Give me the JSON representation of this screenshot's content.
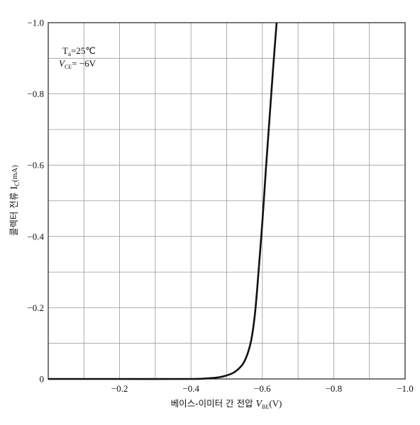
{
  "chart_data": {
    "type": "line",
    "xlabel": "베이스-이미터 간 전압 V_BE(V)",
    "xlabel_parts": {
      "text": "베이스-이미터 간 전압 ",
      "var": "V",
      "sub": "BE",
      "unit": "(V)"
    },
    "ylabel": "콜렉터 전류 I_C(mA)",
    "ylabel_parts": {
      "text": "콜렉터 전류 ",
      "var": "I",
      "sub": "C",
      "unit": "(mA)"
    },
    "xlim": [
      0,
      -1.0
    ],
    "ylim": [
      0,
      -1.0
    ],
    "x_ticks": [
      {
        "value": -0.2,
        "label": "−0.2"
      },
      {
        "value": -0.4,
        "label": "−0.4"
      },
      {
        "value": -0.6,
        "label": "−0.6"
      },
      {
        "value": -0.8,
        "label": "−0.8"
      },
      {
        "value": -1.0,
        "label": "−1.0"
      }
    ],
    "y_ticks": [
      {
        "value": 0,
        "label": "0"
      },
      {
        "value": -0.2,
        "label": "−0.2"
      },
      {
        "value": -0.4,
        "label": "−0.4"
      },
      {
        "value": -0.6,
        "label": "−0.6"
      },
      {
        "value": -0.8,
        "label": "−0.8"
      },
      {
        "value": -1.0,
        "label": "−1.0"
      }
    ],
    "grid": true,
    "annotations": {
      "ta": {
        "var": "T",
        "sub": "a",
        "rest": "=25℃"
      },
      "vce": {
        "var": "V",
        "sub": "CE",
        "rest": "= −6V"
      }
    },
    "series": [
      {
        "x": [
          0,
          -0.2,
          -0.4,
          -0.45,
          -0.48,
          -0.5,
          -0.52,
          -0.54,
          -0.55,
          -0.56,
          -0.57,
          -0.58,
          -0.59,
          -0.6,
          -0.61,
          -0.62,
          -0.63,
          -0.64
        ],
        "y": [
          0,
          0,
          0,
          -0.002,
          -0.005,
          -0.01,
          -0.018,
          -0.035,
          -0.05,
          -0.075,
          -0.115,
          -0.19,
          -0.31,
          -0.44,
          -0.59,
          -0.73,
          -0.87,
          -1.0
        ]
      }
    ]
  }
}
